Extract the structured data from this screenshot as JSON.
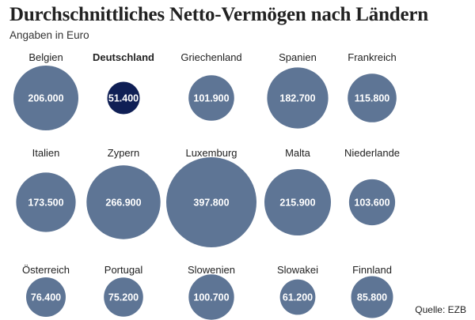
{
  "chart_data": {
    "type": "bubble",
    "title": "Durchschnittliches Netto-Vermögen nach Ländern",
    "subtitle": "Angaben in Euro",
    "source": "Quelle: EZB",
    "unit": "Euro",
    "colors": {
      "default": "#5e7595",
      "highlight": "#0f1f55",
      "value_text": "#ffffff",
      "label_text": "#222222"
    },
    "highlight_label": "Deutschland",
    "rows": [
      [
        {
          "label": "Belgien",
          "value": 206000,
          "value_text": "206.000"
        },
        {
          "label": "Deutschland",
          "value": 51400,
          "value_text": "51.400"
        },
        {
          "label": "Griechenland",
          "value": 101900,
          "value_text": "101.900"
        },
        {
          "label": "Spanien",
          "value": 182700,
          "value_text": "182.700"
        },
        {
          "label": "Frankreich",
          "value": 115800,
          "value_text": "115.800"
        }
      ],
      [
        {
          "label": "Italien",
          "value": 173500,
          "value_text": "173.500"
        },
        {
          "label": "Zypern",
          "value": 266900,
          "value_text": "266.900"
        },
        {
          "label": "Luxemburg",
          "value": 397800,
          "value_text": "397.800"
        },
        {
          "label": "Malta",
          "value": 215900,
          "value_text": "215.900"
        },
        {
          "label": "Niederlande",
          "value": 103600,
          "value_text": "103.600"
        }
      ],
      [
        {
          "label": "Österreich",
          "value": 76400,
          "value_text": "76.400"
        },
        {
          "label": "Portugal",
          "value": 75200,
          "value_text": "75.200"
        },
        {
          "label": "Slowenien",
          "value": 100700,
          "value_text": "100.700"
        },
        {
          "label": "Slowakei",
          "value": 61200,
          "value_text": "61.200"
        },
        {
          "label": "Finnland",
          "value": 85800,
          "value_text": "85.800"
        }
      ]
    ]
  }
}
